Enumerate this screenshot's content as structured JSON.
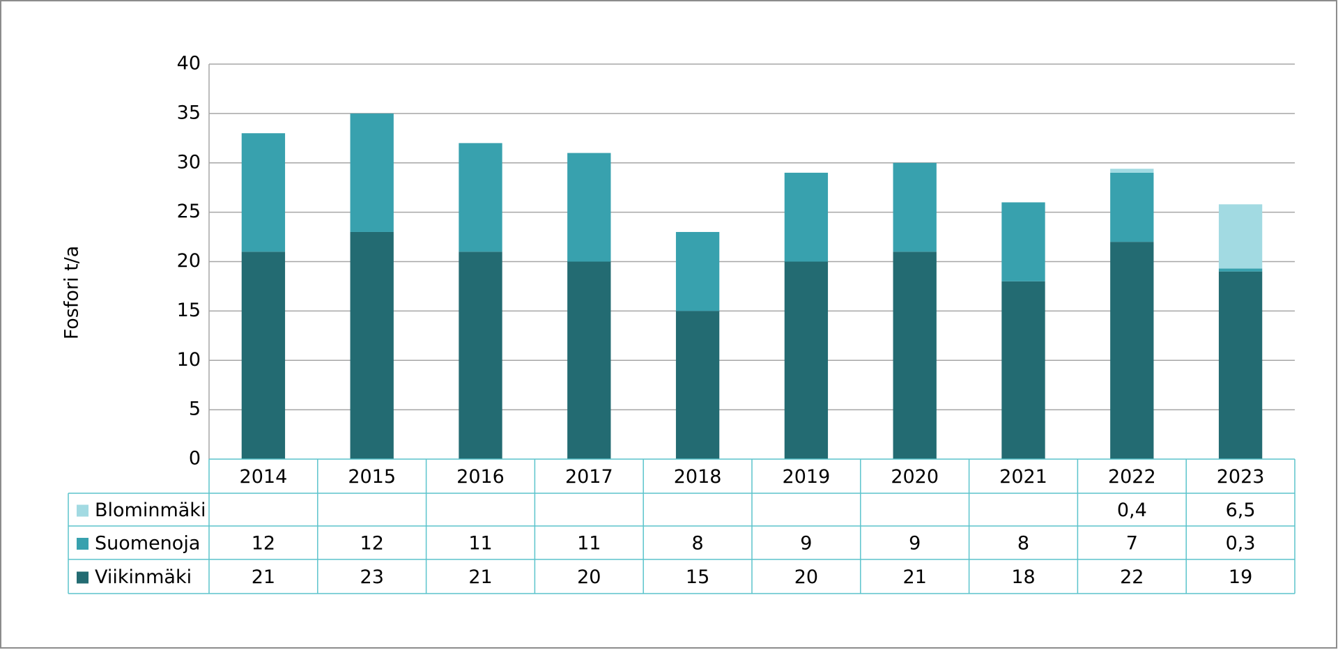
{
  "chart_data": {
    "type": "stacked_bar",
    "y_label": "Fosfori t/a",
    "categories": [
      "2014",
      "2015",
      "2016",
      "2017",
      "2018",
      "2019",
      "2020",
      "2021",
      "2022",
      "2023"
    ],
    "series": [
      {
        "name": "Viikinmäki",
        "color": "#236b72",
        "values": [
          21,
          23,
          21,
          20,
          15,
          20,
          21,
          18,
          22,
          19
        ]
      },
      {
        "name": "Suomenoja",
        "color": "#38a1ae",
        "values": [
          12,
          12,
          11,
          11,
          8,
          9,
          9,
          8,
          7,
          0.3
        ],
        "value_labels": [
          "12",
          "12",
          "11",
          "11",
          "8",
          "9",
          "9",
          "8",
          "7",
          "0,3"
        ]
      },
      {
        "name": "Blominmäki",
        "color": "#a2dae2",
        "values": [
          null,
          null,
          null,
          null,
          null,
          null,
          null,
          null,
          0.4,
          6.5
        ],
        "value_labels": [
          null,
          null,
          null,
          null,
          null,
          null,
          null,
          null,
          "0,4",
          "6,5"
        ]
      }
    ],
    "ylim": [
      0,
      40
    ],
    "yticks": [
      0,
      5,
      10,
      15,
      20,
      25,
      30,
      35,
      40
    ],
    "grid": true
  }
}
